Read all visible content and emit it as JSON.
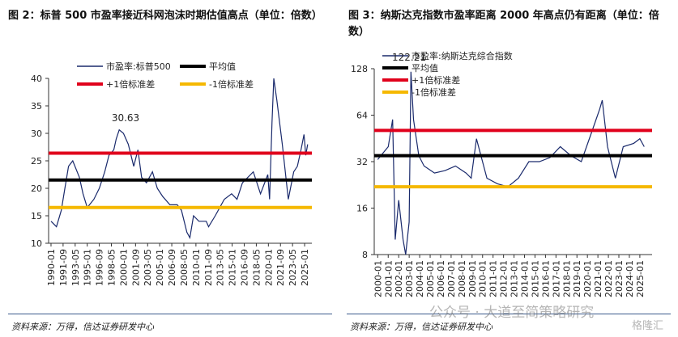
{
  "chart_data": [
    {
      "type": "line",
      "title": "图 2：标普 500 市盈率接近科网泡沫时期估值高点（单位：倍数）",
      "source": "资料来源：万得，信达证券研发中心",
      "x": [
        "1990-01",
        "1990-10",
        "1991-06",
        "1991-12",
        "1992-06",
        "1993-01",
        "1993-12",
        "1994-06",
        "1995-01",
        "1995-12",
        "1996-09",
        "1997-06",
        "1998-01",
        "1998-09",
        "1999-01",
        "1999-06",
        "2000-01",
        "2000-09",
        "2001-06",
        "2002-01",
        "2002-07",
        "2003-03",
        "2004-01",
        "2004-09",
        "2005-06",
        "2006-06",
        "2007-06",
        "2008-01",
        "2008-10",
        "2009-03",
        "2009-09",
        "2010-06",
        "2011-06",
        "2011-10",
        "2012-09",
        "2013-12",
        "2014-12",
        "2015-09",
        "2016-06",
        "2017-12",
        "2018-12",
        "2019-12",
        "2020-03",
        "2020-07",
        "2020-10",
        "2021-03",
        "2021-12",
        "2022-10",
        "2023-07",
        "2024-01",
        "2024-07",
        "2024-12",
        "2025-03",
        "2025-06"
      ],
      "series": [
        {
          "name": "市盈率:标普500",
          "color": "#1a2a6c",
          "values": [
            14,
            13,
            16,
            20,
            24,
            25,
            22,
            19,
            16.5,
            18,
            20,
            23,
            26,
            27,
            29,
            30.63,
            30,
            28,
            24,
            27,
            22,
            21,
            23,
            20,
            18.5,
            17,
            17,
            16,
            12,
            11,
            15,
            14,
            14,
            13,
            15,
            18,
            19,
            18,
            21,
            23,
            19,
            22.5,
            18,
            32,
            40,
            36,
            28,
            18,
            23,
            24,
            27,
            29.8,
            26,
            28
          ]
        }
      ],
      "reference_lines": [
        {
          "name": "平均值",
          "color": "#000000",
          "value": 21.5
        },
        {
          "name": "+1倍标准差",
          "color": "#e0001b",
          "value": 26.4
        },
        {
          "name": "-1倍标准差",
          "color": "#f5b800",
          "value": 16.5
        }
      ],
      "annotations": [
        "30.63"
      ],
      "xlim": [
        "1989-09",
        "2026-01"
      ],
      "xticks": [
        "1990-01",
        "1991-09",
        "1993-05",
        "1995-01",
        "1996-09",
        "1998-05",
        "2000-01",
        "2001-09",
        "2003-05",
        "2005-01",
        "2006-09",
        "2008-05",
        "2010-01",
        "2011-09",
        "2013-05",
        "2015-01",
        "2016-09",
        "2018-05",
        "2020-01",
        "2021-09",
        "2023-05",
        "2025-01"
      ],
      "ylim": [
        10,
        40
      ],
      "yticks": [
        10,
        15,
        20,
        25,
        30,
        35,
        40
      ],
      "log_y": false
    },
    {
      "type": "line",
      "title": "图 3：纳斯达克指数市盈率距离 2000 年高点仍有距离（单位：倍数）",
      "source": "资料来源：万得，信达证券研发中心",
      "x": [
        "2000-01",
        "2001-01",
        "2001-06",
        "2001-09",
        "2002-01",
        "2002-06",
        "2002-09",
        "2003-01",
        "2003-03",
        "2003-06",
        "2003-12",
        "2004-06",
        "2005-06",
        "2006-06",
        "2007-06",
        "2008-06",
        "2008-12",
        "2009-06",
        "2010-06",
        "2011-06",
        "2012-06",
        "2013-06",
        "2014-06",
        "2015-06",
        "2016-06",
        "2017-06",
        "2018-06",
        "2019-06",
        "2020-06",
        "2021-03",
        "2021-06",
        "2021-12",
        "2022-09",
        "2023-06",
        "2024-06",
        "2025-01",
        "2025-06"
      ],
      "series": [
        {
          "name": "市盈率:纳斯达克综合指数",
          "color": "#1a2a6c",
          "values": [
            33,
            40,
            60,
            10,
            18,
            10,
            8,
            13,
            122.21,
            60,
            35,
            30,
            27,
            28,
            30,
            27,
            25,
            45,
            25,
            23,
            22,
            25,
            32,
            32,
            34,
            40,
            35,
            32,
            50,
            70,
            80,
            40,
            25,
            40,
            42,
            45,
            40
          ]
        }
      ],
      "reference_lines": [
        {
          "name": "平均值",
          "color": "#000000",
          "value": 35
        },
        {
          "name": "+1倍标准差",
          "color": "#e0001b",
          "value": 51
        },
        {
          "name": "-1倍标准差",
          "color": "#f5b800",
          "value": 22
        }
      ],
      "annotations": [
        "122.21"
      ],
      "xlim": [
        "1999-09",
        "2026-03"
      ],
      "xticks": [
        "2000-01",
        "2001-01",
        "2002-01",
        "2003-01",
        "2004-01",
        "2005-01",
        "2006-01",
        "2007-01",
        "2008-01",
        "2009-01",
        "2010-01",
        "2011-01",
        "2012-01",
        "2013-01",
        "2014-01",
        "2015-01",
        "2016-01",
        "2017-01",
        "2018-01",
        "2019-01",
        "2020-01",
        "2021-01",
        "2022-01",
        "2023-01",
        "2024-01",
        "2025-01"
      ],
      "ylim": [
        8,
        128
      ],
      "yticks": [
        8,
        16,
        32,
        64,
        128
      ],
      "log_y": true
    }
  ],
  "watermark": "公众号 · 大道至简策略研究",
  "logo": "格隆汇"
}
